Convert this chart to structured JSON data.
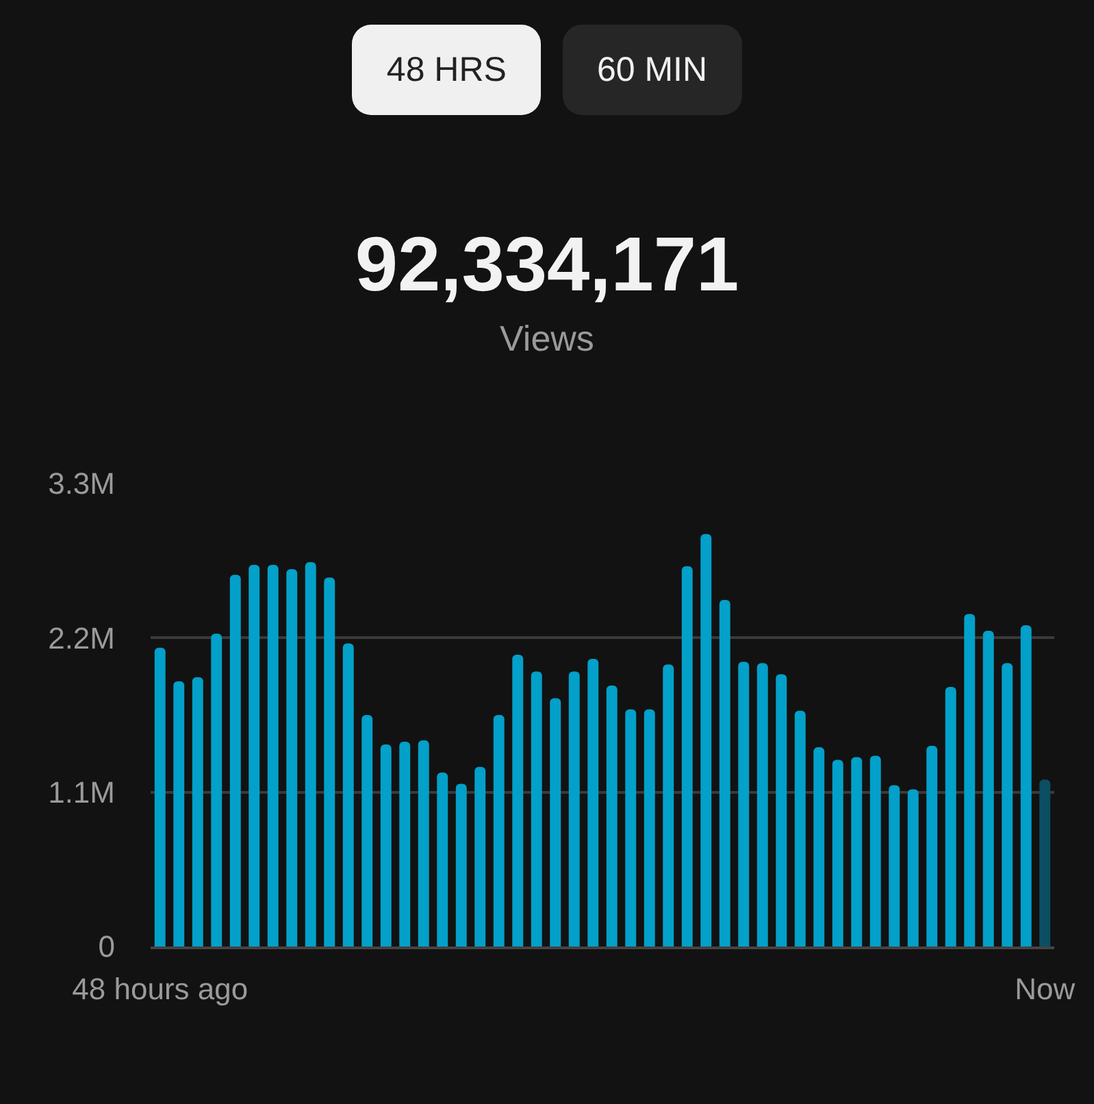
{
  "chart_data": {
    "type": "bar",
    "title": "92,334,171",
    "subtitle": "Views",
    "annotations": [
      "48 HRS",
      "60 MIN"
    ],
    "categories": [
      "48 hours ago",
      null,
      null,
      null,
      null,
      null,
      null,
      null,
      null,
      null,
      null,
      null,
      null,
      null,
      null,
      null,
      null,
      null,
      null,
      null,
      null,
      null,
      null,
      null,
      null,
      null,
      null,
      null,
      null,
      null,
      null,
      null,
      null,
      null,
      null,
      null,
      null,
      null,
      null,
      null,
      null,
      null,
      null,
      null,
      null,
      null,
      null,
      "Now"
    ],
    "values": [
      2.13,
      1.89,
      1.92,
      2.23,
      2.65,
      2.72,
      2.72,
      2.69,
      2.74,
      2.63,
      2.16,
      1.65,
      1.44,
      1.46,
      1.47,
      1.24,
      1.16,
      1.28,
      1.65,
      2.08,
      1.96,
      1.77,
      1.96,
      2.05,
      1.86,
      1.69,
      1.69,
      2.01,
      2.71,
      2.94,
      2.47,
      2.03,
      2.02,
      1.94,
      1.68,
      1.42,
      1.33,
      1.35,
      1.36,
      1.15,
      1.12,
      1.43,
      1.85,
      2.37,
      2.25,
      2.02,
      2.29,
      1.19
    ],
    "colors": [
      "#03a0c9",
      "#03a0c9",
      "#03a0c9",
      "#03a0c9",
      "#03a0c9",
      "#03a0c9",
      "#03a0c9",
      "#03a0c9",
      "#03a0c9",
      "#03a0c9",
      "#03a0c9",
      "#03a0c9",
      "#03a0c9",
      "#03a0c9",
      "#03a0c9",
      "#03a0c9",
      "#03a0c9",
      "#03a0c9",
      "#03a0c9",
      "#03a0c9",
      "#03a0c9",
      "#03a0c9",
      "#03a0c9",
      "#03a0c9",
      "#03a0c9",
      "#03a0c9",
      "#03a0c9",
      "#03a0c9",
      "#03a0c9",
      "#03a0c9",
      "#03a0c9",
      "#03a0c9",
      "#03a0c9",
      "#03a0c9",
      "#03a0c9",
      "#03a0c9",
      "#03a0c9",
      "#03a0c9",
      "#03a0c9",
      "#03a0c9",
      "#03a0c9",
      "#03a0c9",
      "#03a0c9",
      "#03a0c9",
      "#03a0c9",
      "#03a0c9",
      "#03a0c9",
      "#0c4f62"
    ],
    "ylim": [
      0,
      3.3
    ],
    "yticks": [
      {
        "value": 0,
        "label": "0"
      },
      {
        "value": 1.1,
        "label": "1.1M"
      },
      {
        "value": 2.2,
        "label": "2.2M"
      },
      {
        "value": 3.3,
        "label": "3.3M"
      }
    ],
    "grid": "y"
  }
}
